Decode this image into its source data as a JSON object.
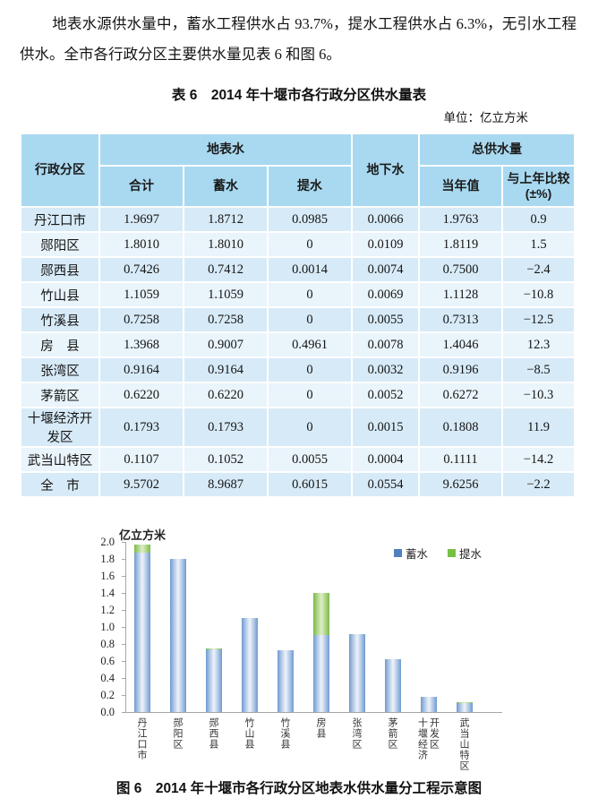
{
  "paragraph": "地表水源供水量中，蓄水工程供水占 93.7%，提水工程供水占 6.3%，无引水工程供水。全市各行政分区主要供水量见表 6 和图 6。",
  "table": {
    "title": "表 6　2014 年十堰市各行政分区供水量表",
    "unit_note": "单位：亿立方米",
    "header": {
      "col_region": "行政分区",
      "group_surface_water": "地表水",
      "col_total": "合计",
      "col_storage": "蓄水",
      "col_pumping": "提水",
      "col_groundwater": "地下水",
      "group_total_supply": "总供水量",
      "col_current_year": "当年值",
      "col_vs_last_year_line1": "与上年比较",
      "col_vs_last_year_line2": "(±%)"
    },
    "rows": [
      [
        "丹江口市",
        "1.9697",
        "1.8712",
        "0.0985",
        "0.0066",
        "1.9763",
        "0.9"
      ],
      [
        "郧阳区",
        "1.8010",
        "1.8010",
        "0",
        "0.0109",
        "1.8119",
        "1.5"
      ],
      [
        "郧西县",
        "0.7426",
        "0.7412",
        "0.0014",
        "0.0074",
        "0.7500",
        "−2.4"
      ],
      [
        "竹山县",
        "1.1059",
        "1.1059",
        "0",
        "0.0069",
        "1.1128",
        "−10.8"
      ],
      [
        "竹溪县",
        "0.7258",
        "0.7258",
        "0",
        "0.0055",
        "0.7313",
        "−12.5"
      ],
      [
        "房　县",
        "1.3968",
        "0.9007",
        "0.4961",
        "0.0078",
        "1.4046",
        "12.3"
      ],
      [
        "张湾区",
        "0.9164",
        "0.9164",
        "0",
        "0.0032",
        "0.9196",
        "−8.5"
      ],
      [
        "茅箭区",
        "0.6220",
        "0.6220",
        "0",
        "0.0052",
        "0.6272",
        "−10.3"
      ],
      [
        "十堰经济开发区",
        "0.1793",
        "0.1793",
        "0",
        "0.0015",
        "0.1808",
        "11.9"
      ],
      [
        "武当山特区",
        "0.1107",
        "0.1052",
        "0.0055",
        "0.0004",
        "0.1111",
        "−14.2"
      ],
      [
        "全　市",
        "9.5702",
        "8.9687",
        "0.6015",
        "0.0554",
        "9.6256",
        "−2.2"
      ]
    ]
  },
  "chart_data": {
    "type": "bar",
    "stacked": true,
    "title": "",
    "unit_label": "亿立方米",
    "categories": [
      "丹江口市",
      "郧阳区",
      "郧西县",
      "竹山县",
      "竹溪县",
      "房县",
      "张湾区",
      "茅箭区",
      "十堰经济开发区",
      "武当山特区"
    ],
    "series": [
      {
        "name": "蓄水",
        "color": "#4f81bd",
        "values": [
          1.8712,
          1.801,
          0.7412,
          1.1059,
          0.7258,
          0.9007,
          0.9164,
          0.622,
          0.1793,
          0.1052
        ]
      },
      {
        "name": "提水",
        "color": "#77c043",
        "values": [
          0.0985,
          0,
          0.0014,
          0,
          0,
          0.4961,
          0,
          0,
          0,
          0.0055
        ]
      }
    ],
    "ylim": [
      0,
      2.0
    ],
    "ytick_step": 0.2,
    "grid": false,
    "legend_position": "top-right"
  },
  "figure_caption": "图 6　2014 年十堰市各行政分区地表水供水量分工程示意图",
  "colors": {
    "table_header_bg": "#a9d9f0",
    "table_row_dark": "#d7eaf7",
    "table_row_light": "#e9f4fb",
    "bar_storage": "#4f81bd",
    "bar_pumping": "#77c043",
    "axis": "#a6a6a6"
  }
}
